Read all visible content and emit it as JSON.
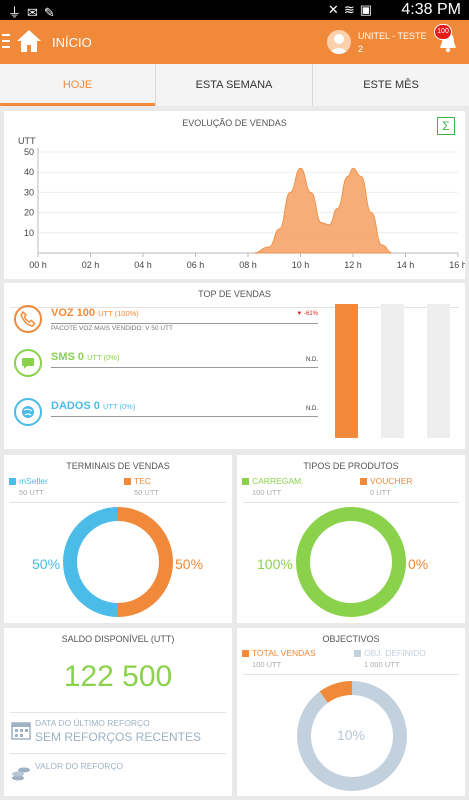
{
  "status_bar": {
    "time": "4:38 PM"
  },
  "app_bar": {
    "title": "INÍCIO",
    "user_line1": "UNITEL - TESTE",
    "user_line2": "2",
    "notification_count": "100"
  },
  "tabs": [
    {
      "label": "HOJE",
      "active": true
    },
    {
      "label": "ESTA SEMANA",
      "active": false
    },
    {
      "label": "ESTE MÊS",
      "active": false
    }
  ],
  "sales_evolution": {
    "title": "EVOLUÇÃO DE VENDAS",
    "sum_icon": "Σ",
    "chart_data": {
      "type": "area",
      "ylabel": "UTT",
      "ylim": [
        0,
        50
      ],
      "yticks": [
        "10",
        "20",
        "30",
        "40",
        "50"
      ],
      "x_ticks": [
        "00 h",
        "02 h",
        "04 h",
        "06 h",
        "08 h",
        "10 h",
        "12 h",
        "14 h",
        "16 h"
      ],
      "xlim": [
        0,
        16
      ],
      "x": [
        8.2,
        8.8,
        9.2,
        9.6,
        10.0,
        10.4,
        10.8,
        11.1,
        11.4,
        11.8,
        12.0,
        12.3,
        12.7,
        13.1,
        13.5
      ],
      "y": [
        0,
        3,
        12,
        30,
        42,
        30,
        15,
        14,
        22,
        38,
        42,
        38,
        20,
        4,
        0
      ],
      "color": "#f5a469"
    }
  },
  "top_sales": {
    "title": "TOP DE VENDAS",
    "items": [
      {
        "name": "VOZ 100",
        "unit": "UTT (100%)",
        "sub": "PACOTE VOZ MAIS VENDIDO: V 50 UTT",
        "change": "-61%",
        "nd": "",
        "color": "#f08a3a"
      },
      {
        "name": "SMS 0",
        "unit": "UTT (0%)",
        "sub": "",
        "change": "",
        "nd": "N.D.",
        "color": "#8bd24c"
      },
      {
        "name": "DADOS 0",
        "unit": "UTT (0%)",
        "sub": "",
        "change": "",
        "nd": "N.D.",
        "color": "#4bbbe8"
      }
    ],
    "bars": [
      1,
      0,
      0
    ]
  },
  "sales_terminals": {
    "title": "TERMINAIS DE VENDAS",
    "legend": [
      {
        "name": "mSeller",
        "value": "50 UTT",
        "color": "#4bbbe8"
      },
      {
        "name": "TEC",
        "value": "50 UTT",
        "color": "#f08a3a"
      }
    ],
    "left_pct": "50%",
    "right_pct": "50%",
    "share": [
      0.5,
      0.5
    ]
  },
  "product_types": {
    "title": "TIPOS DE PRODUTOS",
    "legend": [
      {
        "name": "CARREGAM.",
        "value": "100 UTT",
        "color": "#8bd24c"
      },
      {
        "name": "VOUCHER",
        "value": "0 UTT",
        "color": "#f08a3a"
      }
    ],
    "left_pct": "100%",
    "right_pct": "0%",
    "share": [
      1,
      0
    ]
  },
  "balance": {
    "title": "SALDO DISPONÍVEL (UTT)",
    "amount": "122 500",
    "last_top_up_label": "DATA DO ÚLTIMO REFORÇO",
    "last_top_up_value": "SEM REFORÇOS RECENTES",
    "top_up_value_label": "VALOR DO REFORÇO"
  },
  "objectives": {
    "title": "OBJECTIVOS",
    "legend": [
      {
        "name": "TOTAL VENDAS",
        "value": "100 UTT",
        "color": "#f08a3a"
      },
      {
        "name": "OBJ. DEFINIDO",
        "value": "1 000 UTT",
        "color": "#c3d1de"
      }
    ],
    "center_pct": "10%",
    "progress": 0.1
  }
}
